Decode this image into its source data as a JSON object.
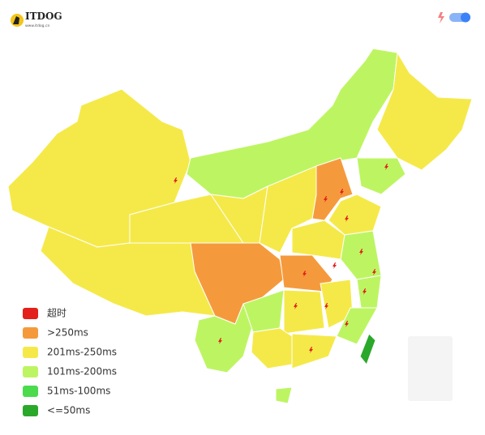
{
  "header": {
    "logo": "ITDOG",
    "logo_url": "www.itdog.cn"
  },
  "legend": {
    "items": [
      {
        "label": "超时",
        "color": "#e3201b"
      },
      {
        "label": ">250ms",
        "color": "#f59a3c"
      },
      {
        "label": "201ms-250ms",
        "color": "#f5e94a"
      },
      {
        "label": "101ms-200ms",
        "color": "#bdf562"
      },
      {
        "label": "51ms-100ms",
        "color": "#4cdb4c"
      },
      {
        "label": "<=50ms",
        "color": "#2aa82a"
      }
    ]
  }
}
